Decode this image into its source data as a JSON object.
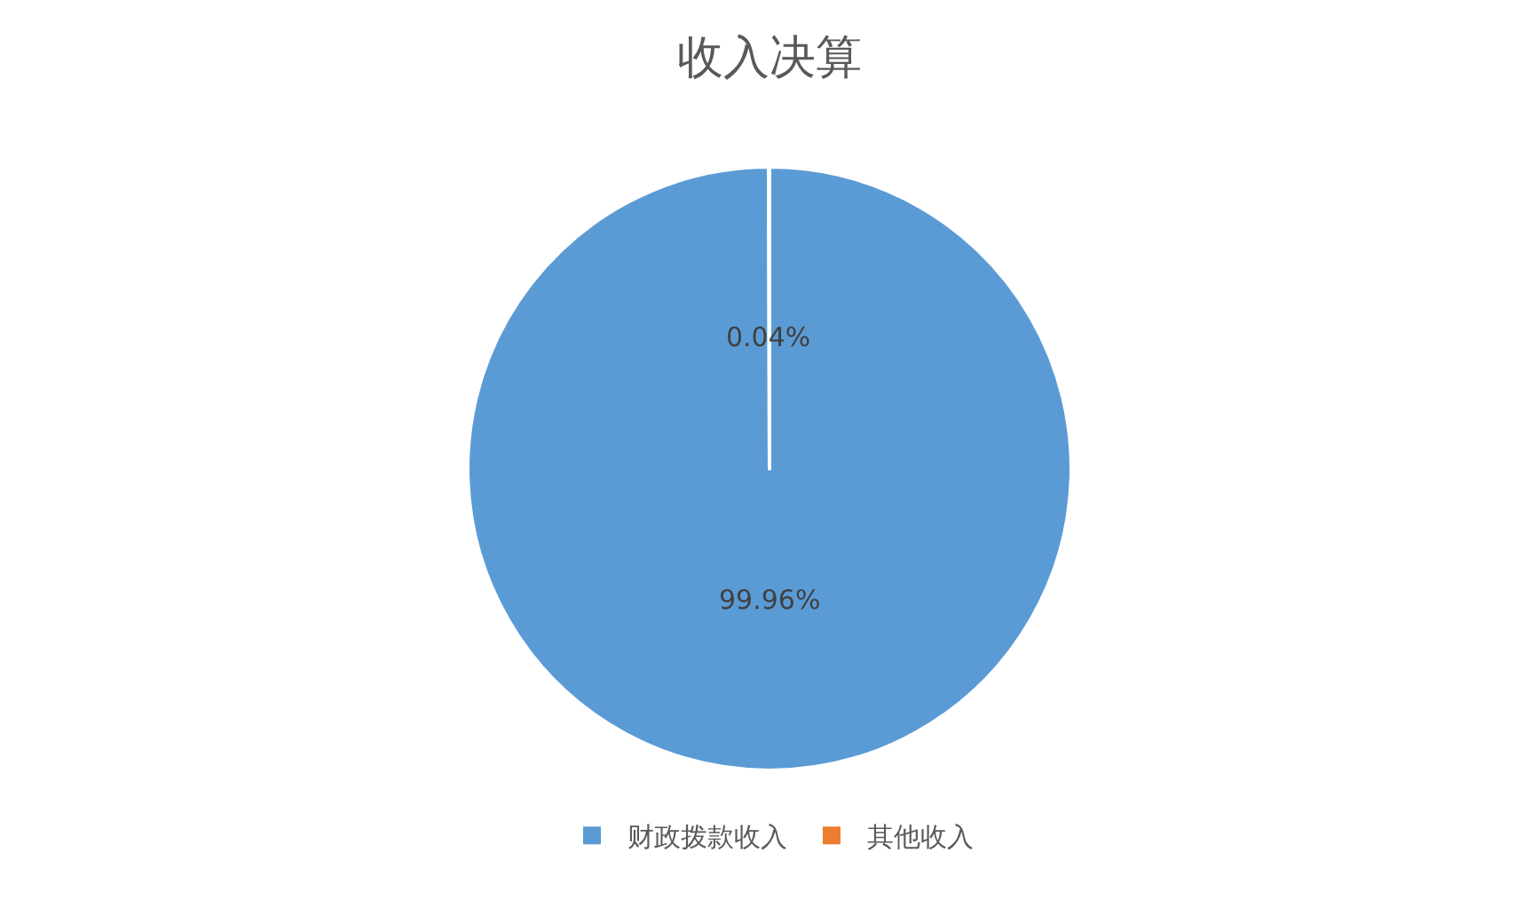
{
  "chart_data": {
    "type": "pie",
    "title": "收入决算",
    "categories": [
      "财政拨款收入",
      "其他收入"
    ],
    "values": [
      99.96,
      0.04
    ],
    "colors": [
      "#5b9bd5",
      "#ed7d31"
    ],
    "value_labels": [
      "99.96%",
      "0.04%"
    ],
    "legend": "bottom"
  }
}
